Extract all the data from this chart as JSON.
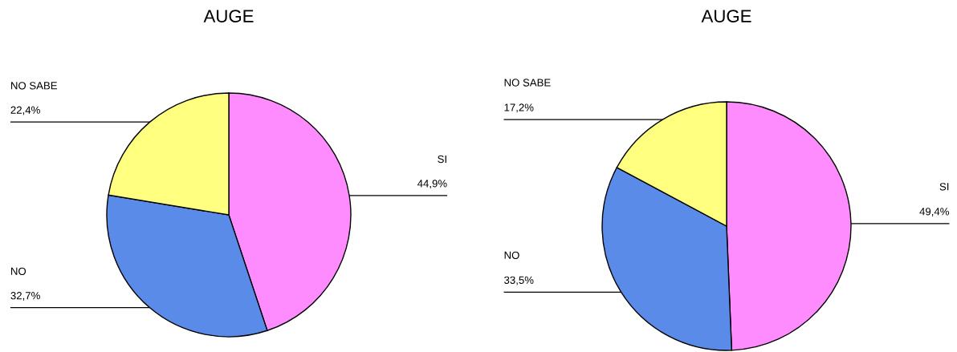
{
  "chart_data": [
    {
      "type": "pie",
      "title": "AUGE",
      "categories": [
        "SI",
        "NO",
        "NO SABE"
      ],
      "values": [
        44.9,
        32.7,
        22.4
      ],
      "colors": [
        "#ff8cff",
        "#5b8be8",
        "#ffff80"
      ],
      "value_labels": [
        "44,9%",
        "32,7%",
        "22,4%"
      ]
    },
    {
      "type": "pie",
      "title": "AUGE",
      "categories": [
        "SI",
        "NO",
        "NO SABE"
      ],
      "values": [
        49.4,
        33.5,
        17.2
      ],
      "colors": [
        "#ff8cff",
        "#5b8be8",
        "#ffff80"
      ],
      "value_labels": [
        "49,4%",
        "33,5%",
        "17,2%"
      ]
    }
  ]
}
